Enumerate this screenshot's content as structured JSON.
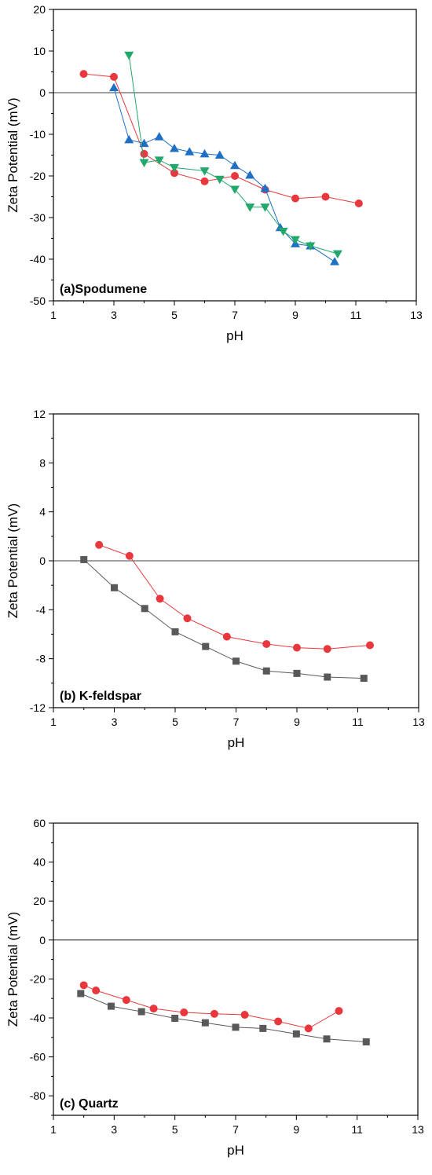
{
  "chart_data": [
    {
      "type": "scatter",
      "panel_label": "(a)Spodumene",
      "xlabel": "pH",
      "ylabel": "Zeta Potential (mV)",
      "xlim": [
        1,
        13
      ],
      "ylim": [
        -50,
        20
      ],
      "xticks": [
        1,
        3,
        5,
        7,
        9,
        11,
        13
      ],
      "yticks": [
        -50,
        -40,
        -30,
        -20,
        -10,
        0,
        10,
        20
      ],
      "zero_line": true,
      "series": [
        {
          "color": "#e8383d",
          "marker": "circle",
          "x": [
            2.0,
            3.0,
            4.0,
            5.0,
            6.0,
            7.0,
            8.0,
            9.0,
            10.0,
            11.1
          ],
          "y": [
            4.5,
            3.8,
            -14.7,
            -19.3,
            -21.3,
            -20.0,
            -23.3,
            -25.4,
            -25.0,
            -26.6
          ]
        },
        {
          "color": "#1f6fc5",
          "marker": "triangle-up",
          "x": [
            3.0,
            3.5,
            4.0,
            4.5,
            5.0,
            5.5,
            6.0,
            6.5,
            7.0,
            7.5,
            8.0,
            8.5,
            9.0,
            9.5,
            10.3
          ],
          "y": [
            1.2,
            -11.3,
            -12.2,
            -10.6,
            -13.4,
            -14.2,
            -14.7,
            -15.0,
            -17.5,
            -19.8,
            -23.0,
            -32.4,
            -36.3,
            -36.8,
            -40.6
          ]
        },
        {
          "color": "#22a86a",
          "marker": "triangle-down",
          "x": [
            3.5,
            4.0,
            4.5,
            5.0,
            6.0,
            6.5,
            7.0,
            7.5,
            8.0,
            8.6,
            9.0,
            9.5,
            10.4
          ],
          "y": [
            9.0,
            -16.8,
            -16.2,
            -18.0,
            -18.8,
            -20.8,
            -23.2,
            -27.5,
            -27.5,
            -33.3,
            -35.3,
            -36.8,
            -38.7
          ]
        }
      ]
    },
    {
      "type": "scatter",
      "panel_label": "(b) K-feldspar",
      "xlabel": "pH",
      "ylabel": "Zeta Potential (mV)",
      "xlim": [
        1,
        13
      ],
      "ylim": [
        -12,
        12
      ],
      "xticks": [
        1,
        3,
        5,
        7,
        9,
        11,
        13
      ],
      "yticks": [
        -12,
        -8,
        -4,
        0,
        4,
        8,
        12
      ],
      "zero_line": true,
      "series": [
        {
          "color": "#595959",
          "marker": "square",
          "x": [
            2.0,
            3.0,
            4.0,
            5.0,
            6.0,
            7.0,
            8.0,
            9.0,
            10.0,
            11.2
          ],
          "y": [
            0.1,
            -2.2,
            -3.9,
            -5.8,
            -7.0,
            -8.2,
            -9.0,
            -9.2,
            -9.5,
            -9.6
          ]
        },
        {
          "color": "#e8383d",
          "marker": "circle",
          "x": [
            2.5,
            3.5,
            4.5,
            5.4,
            6.7,
            8.0,
            9.0,
            10.0,
            11.4
          ],
          "y": [
            1.3,
            0.4,
            -3.1,
            -4.7,
            -6.2,
            -6.8,
            -7.1,
            -7.2,
            -6.9
          ]
        }
      ]
    },
    {
      "type": "scatter",
      "panel_label": "(c) Quartz",
      "xlabel": "pH",
      "ylabel": "Zeta Potential (mV)",
      "xlim": [
        1,
        13
      ],
      "ylim": [
        -90,
        60
      ],
      "xticks": [
        1,
        3,
        5,
        7,
        9,
        11,
        13
      ],
      "yticks": [
        -80,
        -60,
        -40,
        -20,
        0,
        20,
        40,
        60
      ],
      "zero_line": true,
      "series": [
        {
          "color": "#595959",
          "marker": "square",
          "x": [
            1.9,
            2.9,
            3.9,
            5.0,
            6.0,
            7.0,
            7.9,
            9.0,
            10.0,
            11.3
          ],
          "y": [
            -27.5,
            -34.0,
            -36.8,
            -40.2,
            -42.5,
            -44.8,
            -45.4,
            -48.2,
            -50.8,
            -52.3
          ]
        },
        {
          "color": "#e8383d",
          "marker": "circle",
          "x": [
            2.0,
            2.4,
            3.4,
            4.3,
            5.3,
            6.3,
            7.3,
            8.4,
            9.4,
            10.4
          ],
          "y": [
            -23.2,
            -25.9,
            -30.8,
            -35.2,
            -37.2,
            -37.9,
            -38.4,
            -41.8,
            -45.4,
            -36.4
          ]
        }
      ]
    }
  ]
}
